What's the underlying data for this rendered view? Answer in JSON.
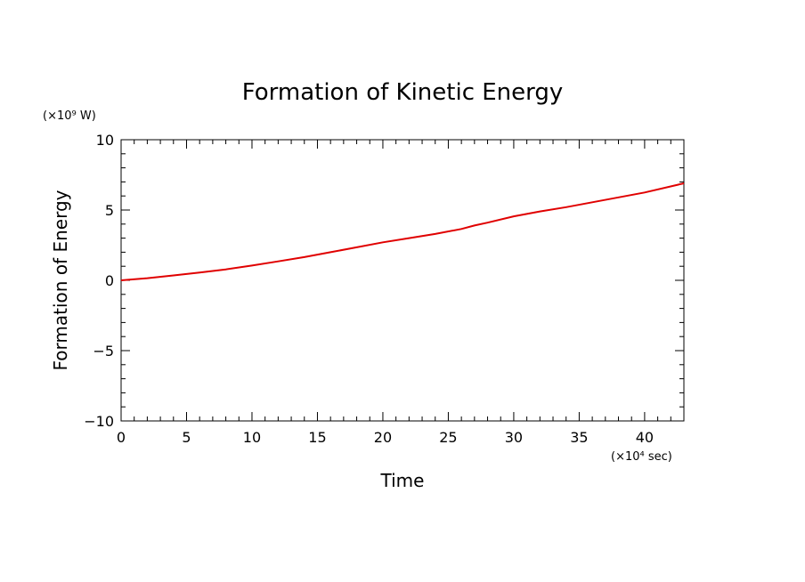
{
  "chart_data": {
    "type": "line",
    "title": "Formation of Kinetic Energy",
    "xlabel": "Time",
    "ylabel": "Formation of Energy",
    "x_unit": "(×10⁴ sec)",
    "y_unit": "(×10⁹ W)",
    "xlim": [
      0,
      43
    ],
    "ylim": [
      -10,
      10
    ],
    "x_ticks": [
      0,
      5,
      10,
      15,
      20,
      25,
      30,
      35,
      40
    ],
    "x_tick_labels": [
      "0",
      "5",
      "10",
      "15",
      "20",
      "25",
      "30",
      "35",
      "40"
    ],
    "y_ticks": [
      -10,
      -5,
      0,
      5,
      10
    ],
    "y_tick_labels": [
      "−10",
      "−5",
      "0",
      "5",
      "10"
    ],
    "grid": false,
    "series_color": "#e00000",
    "series": [
      {
        "x": [
          0,
          2,
          4,
          6,
          8,
          10,
          12,
          14,
          16,
          18,
          20,
          22,
          24,
          26,
          27,
          28,
          30,
          32,
          34,
          36,
          38,
          40,
          43
        ],
        "y": [
          0.0,
          0.15,
          0.35,
          0.55,
          0.78,
          1.05,
          1.35,
          1.65,
          2.0,
          2.35,
          2.7,
          3.0,
          3.3,
          3.65,
          3.9,
          4.1,
          4.55,
          4.9,
          5.2,
          5.55,
          5.9,
          6.25,
          6.9
        ]
      }
    ]
  }
}
